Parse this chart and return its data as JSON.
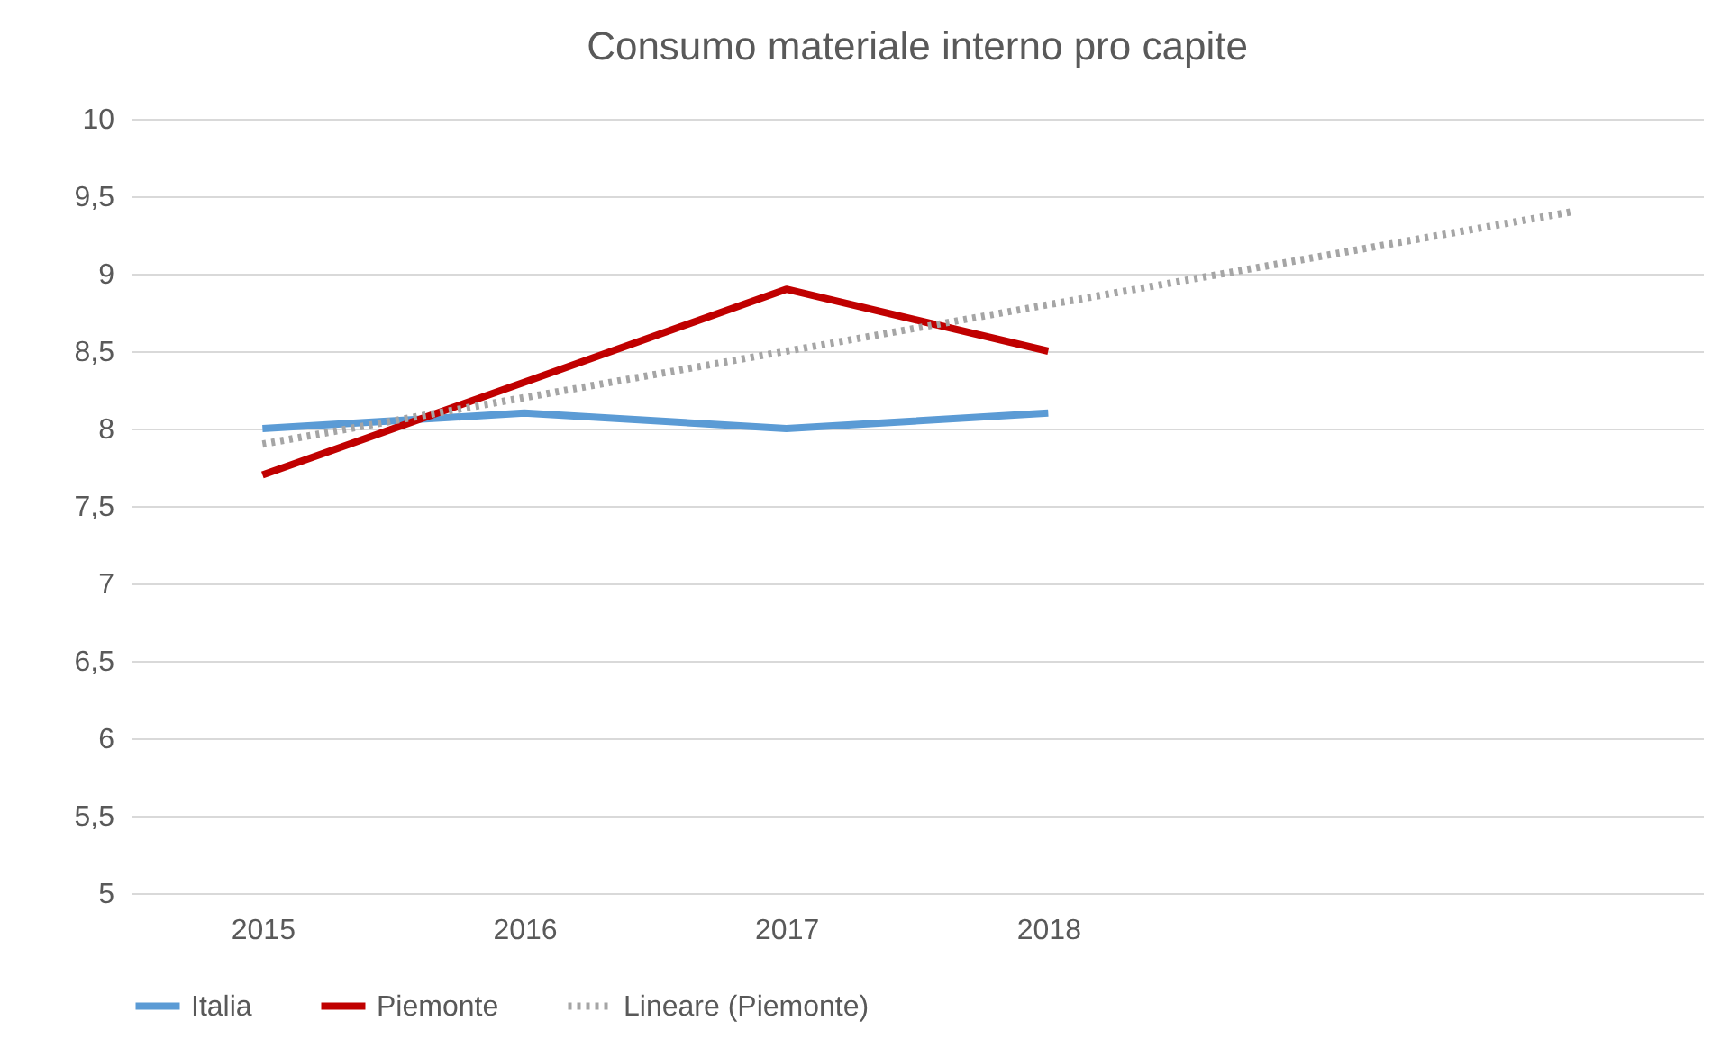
{
  "chart_data": {
    "type": "line",
    "title": "Consumo materiale interno pro capite",
    "categories": [
      "2015",
      "2016",
      "2017",
      "2018",
      null,
      null
    ],
    "series": [
      {
        "name": "Italia",
        "color": "#5b9bd5",
        "values": [
          8.0,
          8.1,
          8.0,
          8.1,
          null,
          null
        ],
        "line_style": "solid"
      },
      {
        "name": "Piemonte",
        "color": "#c00000",
        "values": [
          7.7,
          8.3,
          8.9,
          8.5,
          null,
          null
        ],
        "line_style": "solid"
      },
      {
        "name": "Lineare (Piemonte)",
        "color": "#a5a5a5",
        "values": [
          7.9,
          8.2,
          8.5,
          8.8,
          9.1,
          9.4
        ],
        "line_style": "dotted"
      }
    ],
    "ylim": [
      5,
      10
    ],
    "yticks": [
      5,
      {
        "value": 5.5,
        "label": "5,5"
      },
      6,
      {
        "value": 6.5,
        "label": "6,5"
      },
      7,
      {
        "value": 7.5,
        "label": "7,5"
      },
      8,
      {
        "value": 8.5,
        "label": "8,5"
      },
      9,
      {
        "value": 9.5,
        "label": "9,5"
      },
      10
    ],
    "grid": "y",
    "legend": "bottom",
    "marker": "none"
  }
}
